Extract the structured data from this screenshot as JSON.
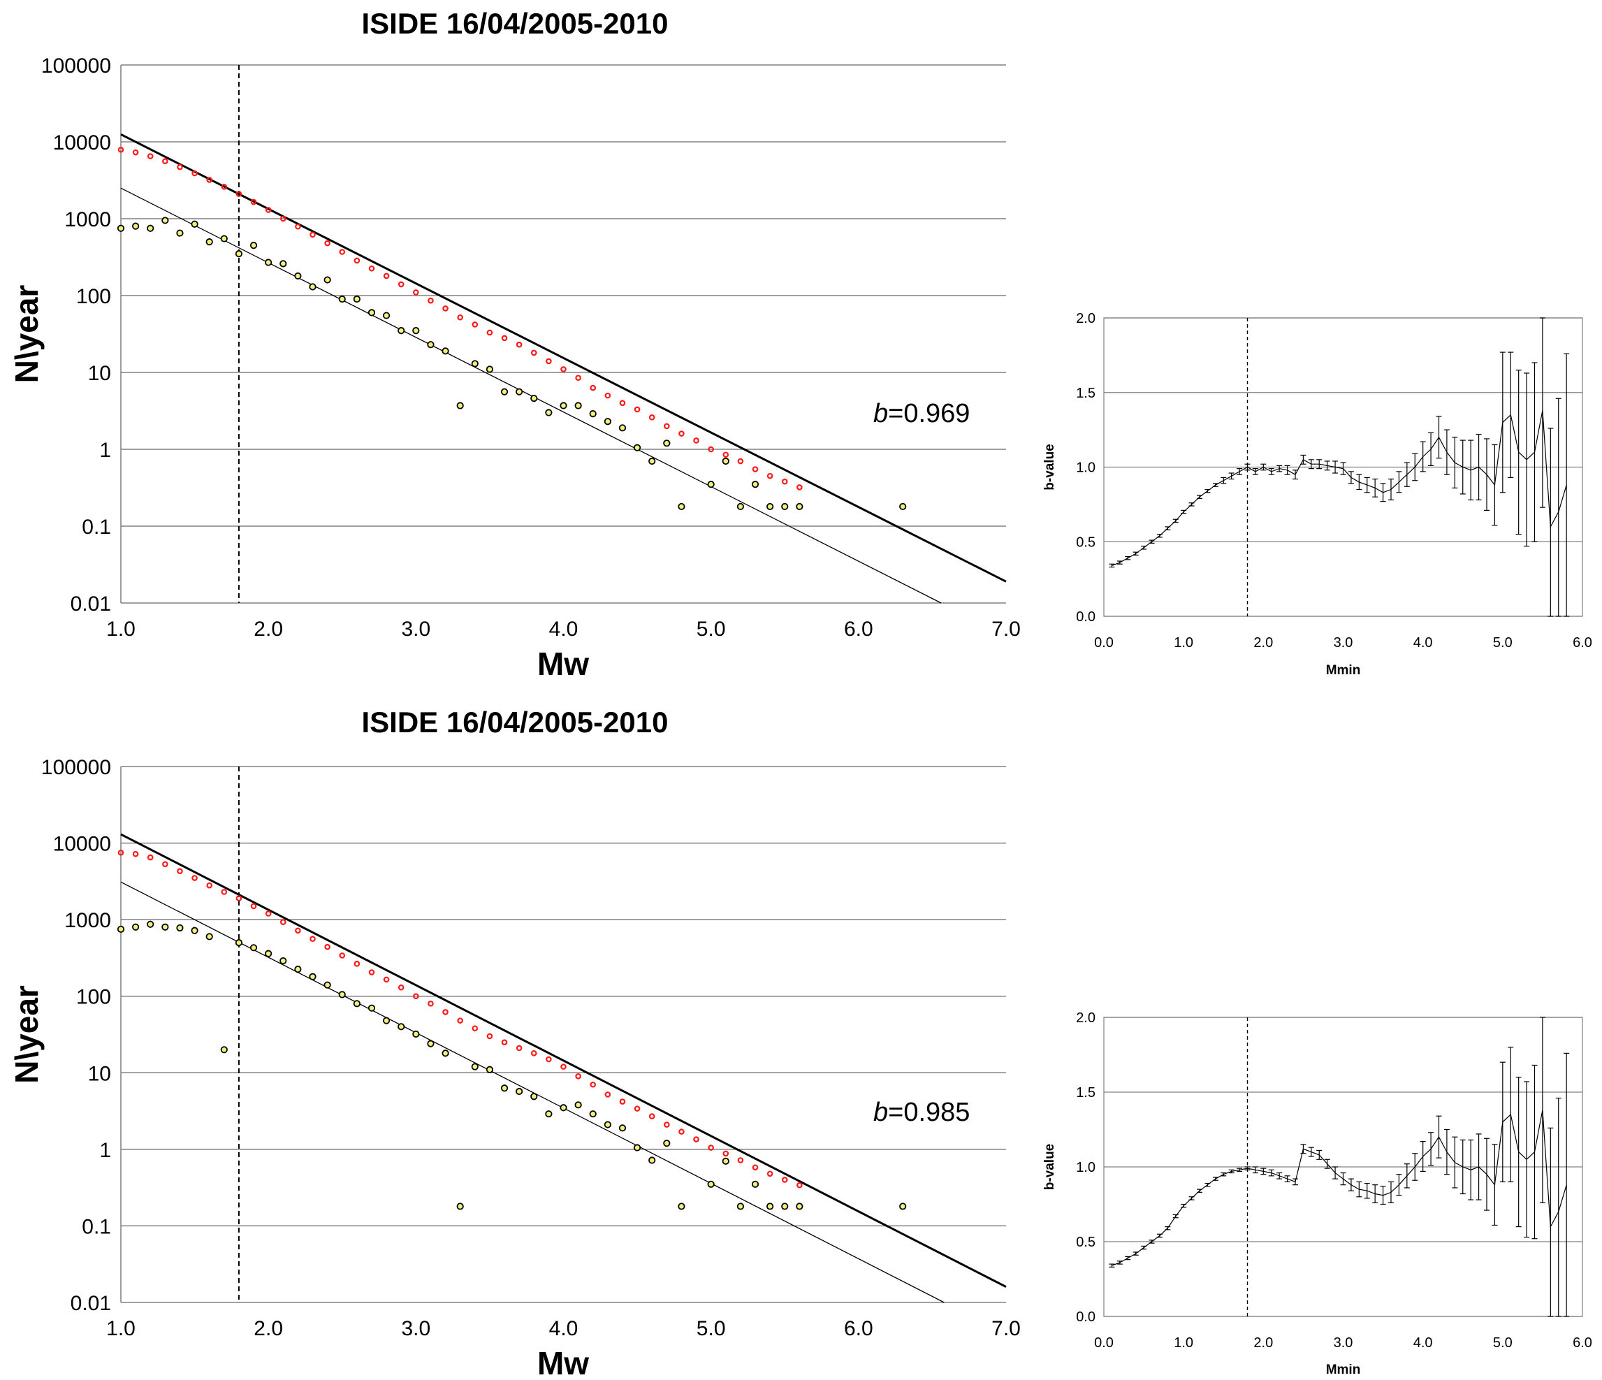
{
  "chart_data": [
    {
      "type": "scatter",
      "title": "ISIDE 16/04/2005-2010",
      "xlabel": "Mw",
      "ylabel": "N\\year",
      "yscale": "log",
      "xlim": [
        1.0,
        7.0
      ],
      "ylim": [
        0.01,
        100000
      ],
      "xticks": [
        "1.0",
        "2.0",
        "3.0",
        "4.0",
        "5.0",
        "6.0",
        "7.0"
      ],
      "yticks": [
        "0.01",
        "0.1",
        "1",
        "10",
        "100",
        "1000",
        "10000",
        "100000"
      ],
      "grid": "horizontal",
      "annotation": {
        "b_label": "b",
        "b_value": "=0.969"
      },
      "completeness_magnitude": 1.8,
      "fit_lines": [
        {
          "style": "thick",
          "x": [
            1.0,
            7.0
          ],
          "y": [
            12500,
            0.019
          ]
        },
        {
          "style": "thin",
          "x": [
            1.0,
            6.56
          ],
          "y": [
            2500,
            0.01
          ]
        }
      ],
      "series": [
        {
          "marker": "red-open-circle",
          "x": [
            1.0,
            1.1,
            1.2,
            1.3,
            1.4,
            1.5,
            1.6,
            1.7,
            1.8,
            1.9,
            2.0,
            2.1,
            2.2,
            2.3,
            2.4,
            2.5,
            2.6,
            2.7,
            2.8,
            2.9,
            3.0,
            3.1,
            3.2,
            3.3,
            3.4,
            3.5,
            3.6,
            3.7,
            3.8,
            3.9,
            4.0,
            4.1,
            4.2,
            4.3,
            4.4,
            4.5,
            4.6,
            4.7,
            4.8,
            4.9,
            5.0,
            5.1,
            5.2,
            5.3,
            5.4,
            5.5,
            5.6
          ],
          "y": [
            7900,
            7300,
            6500,
            5600,
            4700,
            3900,
            3200,
            2600,
            2100,
            1650,
            1300,
            1000,
            790,
            620,
            480,
            370,
            285,
            225,
            180,
            140,
            110,
            86,
            68,
            52,
            42,
            33,
            28,
            23,
            18,
            14,
            11,
            8.5,
            6.3,
            5.0,
            4.0,
            3.3,
            2.6,
            2.0,
            1.6,
            1.3,
            1.0,
            0.85,
            0.7,
            0.55,
            0.45,
            0.38,
            0.32
          ]
        },
        {
          "marker": "olive-dot",
          "x": [
            1.0,
            1.1,
            1.2,
            1.3,
            1.4,
            1.5,
            1.6,
            1.7,
            1.8,
            1.9,
            2.0,
            2.1,
            2.2,
            2.3,
            2.4,
            2.5,
            2.6,
            2.7,
            2.8,
            2.9,
            3.0,
            3.1,
            3.2,
            3.3,
            3.4,
            3.5,
            3.6,
            3.7,
            3.8,
            3.9,
            4.0,
            4.1,
            4.2,
            4.3,
            4.4,
            4.5,
            4.6,
            4.7,
            4.8,
            5.0,
            5.1,
            5.2,
            5.3,
            5.4,
            5.5,
            5.6,
            6.3
          ],
          "y": [
            750,
            800,
            750,
            950,
            650,
            850,
            500,
            550,
            350,
            450,
            270,
            260,
            180,
            130,
            160,
            90,
            90,
            60,
            55,
            35,
            35,
            23,
            19,
            3.7,
            13,
            11,
            5.6,
            5.6,
            4.6,
            3.0,
            3.7,
            3.7,
            2.9,
            2.3,
            1.9,
            1.05,
            0.7,
            1.2,
            0.18,
            0.35,
            0.7,
            0.18,
            0.35,
            0.18,
            0.18,
            0.18,
            0.18
          ]
        }
      ]
    },
    {
      "type": "line",
      "xlabel": "Mmin",
      "ylabel": "b-value",
      "xlim": [
        0.0,
        6.0
      ],
      "ylim": [
        0.0,
        2.0
      ],
      "xticks": [
        "0.0",
        "1.0",
        "2.0",
        "3.0",
        "4.0",
        "5.0",
        "6.0"
      ],
      "yticks": [
        "0.0",
        "0.5",
        "1.0",
        "1.5",
        "2.0"
      ],
      "grid": "horizontal",
      "completeness_magnitude": 1.8,
      "series": [
        {
          "name": "",
          "x": [
            0.1,
            0.2,
            0.3,
            0.4,
            0.5,
            0.6,
            0.7,
            0.8,
            0.9,
            1.0,
            1.1,
            1.2,
            1.3,
            1.4,
            1.5,
            1.6,
            1.7,
            1.8,
            1.9,
            2.0,
            2.1,
            2.2,
            2.3,
            2.4,
            2.5,
            2.6,
            2.7,
            2.8,
            2.9,
            3.0,
            3.1,
            3.2,
            3.3,
            3.4,
            3.5,
            3.6,
            3.7,
            3.8,
            3.9,
            4.0,
            4.1,
            4.2,
            4.3,
            4.4,
            4.5,
            4.6,
            4.7,
            4.8,
            4.9,
            5.0,
            5.1,
            5.2,
            5.3,
            5.4,
            5.5,
            5.6,
            5.7,
            5.8
          ],
          "y": [
            0.34,
            0.36,
            0.39,
            0.42,
            0.46,
            0.5,
            0.54,
            0.59,
            0.64,
            0.7,
            0.75,
            0.8,
            0.84,
            0.88,
            0.91,
            0.94,
            0.97,
            1.0,
            0.97,
            1.0,
            0.97,
            0.99,
            0.98,
            0.95,
            1.05,
            1.02,
            1.02,
            1.01,
            1.0,
            0.99,
            0.93,
            0.9,
            0.88,
            0.86,
            0.83,
            0.85,
            0.9,
            0.95,
            1.0,
            1.07,
            1.12,
            1.2,
            1.1,
            1.03,
            1.0,
            0.98,
            1.0,
            0.95,
            0.88,
            1.3,
            1.35,
            1.1,
            1.05,
            1.1,
            1.38,
            0.6,
            0.7,
            0.88
          ],
          "error": [
            0.01,
            0.01,
            0.01,
            0.01,
            0.01,
            0.01,
            0.01,
            0.01,
            0.01,
            0.01,
            0.01,
            0.01,
            0.01,
            0.01,
            0.02,
            0.02,
            0.02,
            0.02,
            0.02,
            0.02,
            0.02,
            0.02,
            0.03,
            0.03,
            0.03,
            0.03,
            0.03,
            0.03,
            0.04,
            0.04,
            0.04,
            0.05,
            0.05,
            0.06,
            0.06,
            0.07,
            0.07,
            0.08,
            0.09,
            0.1,
            0.11,
            0.14,
            0.15,
            0.17,
            0.18,
            0.2,
            0.22,
            0.24,
            0.27,
            0.47,
            0.42,
            0.55,
            0.58,
            0.6,
            0.65,
            0.66,
            0.76,
            0.88
          ]
        }
      ]
    },
    {
      "type": "scatter",
      "title": "ISIDE 16/04/2005-2010",
      "xlabel": "Mw",
      "ylabel": "N\\year",
      "yscale": "log",
      "xlim": [
        1.0,
        7.0
      ],
      "ylim": [
        0.01,
        100000
      ],
      "xticks": [
        "1.0",
        "2.0",
        "3.0",
        "4.0",
        "5.0",
        "6.0",
        "7.0"
      ],
      "yticks": [
        "0.01",
        "0.1",
        "1",
        "10",
        "100",
        "1000",
        "10000",
        "100000"
      ],
      "grid": "horizontal",
      "annotation": {
        "b_label": "b",
        "b_value": "=0.985"
      },
      "completeness_magnitude": 1.8,
      "fit_lines": [
        {
          "style": "thick",
          "x": [
            1.0,
            7.0
          ],
          "y": [
            13000,
            0.016
          ]
        },
        {
          "style": "thin",
          "x": [
            1.0,
            6.58
          ],
          "y": [
            3100,
            0.01
          ]
        }
      ],
      "series": [
        {
          "marker": "red-open-circle",
          "x": [
            1.0,
            1.1,
            1.2,
            1.3,
            1.4,
            1.5,
            1.6,
            1.7,
            1.8,
            1.9,
            2.0,
            2.1,
            2.2,
            2.3,
            2.4,
            2.5,
            2.6,
            2.7,
            2.8,
            2.9,
            3.0,
            3.1,
            3.2,
            3.3,
            3.4,
            3.5,
            3.6,
            3.7,
            3.8,
            3.9,
            4.0,
            4.1,
            4.2,
            4.3,
            4.4,
            4.5,
            4.6,
            4.7,
            4.8,
            4.9,
            5.0,
            5.1,
            5.2,
            5.3,
            5.4,
            5.5,
            5.6
          ],
          "y": [
            7500,
            7200,
            6500,
            5300,
            4300,
            3500,
            2800,
            2300,
            1900,
            1500,
            1200,
            930,
            720,
            560,
            440,
            340,
            265,
            205,
            165,
            130,
            100,
            80,
            62,
            48,
            38,
            30,
            25,
            21,
            18,
            15,
            12,
            9,
            7,
            5.2,
            4.2,
            3.4,
            2.7,
            2.1,
            1.7,
            1.35,
            1.05,
            0.88,
            0.72,
            0.58,
            0.48,
            0.4,
            0.34
          ]
        },
        {
          "marker": "olive-dot",
          "x": [
            1.0,
            1.1,
            1.2,
            1.3,
            1.4,
            1.5,
            1.6,
            1.7,
            1.8,
            1.9,
            2.0,
            2.1,
            2.2,
            2.3,
            2.4,
            2.5,
            2.6,
            2.7,
            2.8,
            2.9,
            3.0,
            3.1,
            3.2,
            3.3,
            3.4,
            3.5,
            3.6,
            3.7,
            3.8,
            3.9,
            4.0,
            4.1,
            4.2,
            4.3,
            4.4,
            4.5,
            4.6,
            4.7,
            4.8,
            5.0,
            5.1,
            5.2,
            5.3,
            5.4,
            5.5,
            5.6,
            6.3
          ],
          "y": [
            750,
            800,
            870,
            800,
            780,
            720,
            600,
            20,
            500,
            430,
            360,
            290,
            225,
            180,
            140,
            105,
            80,
            70,
            48,
            40,
            32,
            24,
            18,
            0.18,
            12,
            11,
            6.3,
            5.7,
            4.9,
            2.9,
            3.5,
            3.8,
            2.9,
            2.1,
            1.9,
            1.05,
            0.72,
            1.2,
            0.18,
            0.35,
            0.7,
            0.18,
            0.35,
            0.18,
            0.18,
            0.18,
            0.18
          ]
        }
      ]
    },
    {
      "type": "line",
      "xlabel": "Mmin",
      "ylabel": "b-value",
      "xlim": [
        0.0,
        6.0
      ],
      "ylim": [
        0.0,
        2.0
      ],
      "xticks": [
        "0.0",
        "1.0",
        "2.0",
        "3.0",
        "4.0",
        "5.0",
        "6.0"
      ],
      "yticks": [
        "0.0",
        "0.5",
        "1.0",
        "1.5",
        "2.0"
      ],
      "grid": "horizontal",
      "completeness_magnitude": 1.8,
      "series": [
        {
          "name": "",
          "x": [
            0.1,
            0.2,
            0.3,
            0.4,
            0.5,
            0.6,
            0.7,
            0.8,
            0.9,
            1.0,
            1.1,
            1.2,
            1.3,
            1.4,
            1.5,
            1.6,
            1.7,
            1.8,
            1.9,
            2.0,
            2.1,
            2.2,
            2.3,
            2.4,
            2.5,
            2.6,
            2.7,
            2.8,
            2.9,
            3.0,
            3.1,
            3.2,
            3.3,
            3.4,
            3.5,
            3.6,
            3.7,
            3.8,
            3.9,
            4.0,
            4.1,
            4.2,
            4.3,
            4.4,
            4.5,
            4.6,
            4.7,
            4.8,
            4.9,
            5.0,
            5.1,
            5.2,
            5.3,
            5.4,
            5.5,
            5.6,
            5.7,
            5.8
          ],
          "y": [
            0.34,
            0.36,
            0.39,
            0.42,
            0.46,
            0.5,
            0.54,
            0.59,
            0.67,
            0.74,
            0.79,
            0.84,
            0.88,
            0.92,
            0.95,
            0.97,
            0.98,
            0.99,
            0.98,
            0.97,
            0.96,
            0.94,
            0.92,
            0.9,
            1.12,
            1.1,
            1.08,
            1.02,
            0.96,
            0.92,
            0.88,
            0.85,
            0.84,
            0.82,
            0.81,
            0.83,
            0.88,
            0.94,
            1.0,
            1.07,
            1.12,
            1.2,
            1.1,
            1.03,
            1.0,
            0.98,
            1.0,
            0.95,
            0.88,
            1.3,
            1.35,
            1.1,
            1.05,
            1.1,
            1.38,
            0.6,
            0.7,
            0.88
          ],
          "error": [
            0.01,
            0.01,
            0.01,
            0.01,
            0.01,
            0.01,
            0.01,
            0.01,
            0.01,
            0.01,
            0.01,
            0.01,
            0.01,
            0.01,
            0.01,
            0.01,
            0.01,
            0.01,
            0.02,
            0.02,
            0.02,
            0.02,
            0.02,
            0.02,
            0.03,
            0.03,
            0.03,
            0.03,
            0.04,
            0.04,
            0.04,
            0.05,
            0.05,
            0.06,
            0.06,
            0.07,
            0.07,
            0.08,
            0.09,
            0.1,
            0.11,
            0.14,
            0.15,
            0.17,
            0.18,
            0.2,
            0.22,
            0.24,
            0.27,
            0.4,
            0.45,
            0.5,
            0.52,
            0.58,
            0.62,
            0.66,
            0.76,
            0.88
          ]
        }
      ]
    }
  ],
  "colors": {
    "red_marker": "#ff1a1a",
    "olive_marker_fill": "#f0f07a",
    "marker_edge": "#000000",
    "grid": "#808080",
    "axis": "#7f7f7f"
  }
}
